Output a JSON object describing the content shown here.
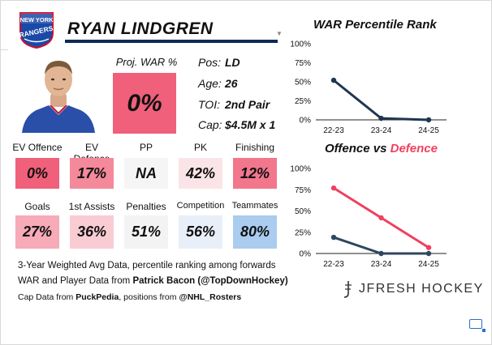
{
  "player": {
    "team_logo_lines": [
      "NEW YORK",
      "RANGERS"
    ],
    "name": "RYAN LINDGREN",
    "proj_war_label": "Proj. WAR %",
    "proj_war_value": "0%",
    "info": [
      {
        "key": "Pos:",
        "value": "LD"
      },
      {
        "key": "Age:",
        "value": "26"
      },
      {
        "key": "TOI:",
        "value": "2nd Pair"
      },
      {
        "key": "Cap:",
        "value": "$4.5M x 1"
      }
    ]
  },
  "metrics_row1": [
    {
      "label": "EV Offence",
      "value": "0%",
      "color": "#f0607a"
    },
    {
      "label": "EV Defence",
      "value": "17%",
      "color": "#f4899b"
    },
    {
      "label": "PP",
      "value": "NA",
      "color": "#f5f5f5"
    },
    {
      "label": "PK",
      "value": "42%",
      "color": "#fbe4e8"
    },
    {
      "label": "Finishing",
      "value": "12%",
      "color": "#f2768c"
    }
  ],
  "metrics_row2": [
    {
      "label": "Goals",
      "value": "27%",
      "color": "#f7aab7"
    },
    {
      "label": "1st Assists",
      "value": "36%",
      "color": "#f9ccd4"
    },
    {
      "label": "Penalties",
      "value": "51%",
      "color": "#f3f3f3"
    },
    {
      "label": "Competition",
      "value": "56%",
      "color": "#e8eff8"
    },
    {
      "label": "Teammates",
      "value": "80%",
      "color": "#a9ccef"
    }
  ],
  "notes": {
    "line1": "3-Year Weighted Avg Data, percentile ranking among forwards",
    "line2_prefix": "WAR and Player Data from ",
    "line2_bold": "Patrick Bacon (@TopDownHockey)",
    "line3_prefix": "Cap Data from ",
    "line3_bold1": "PuckPedia",
    "line3_mid": ", positions from ",
    "line3_bold2": "@NHL_Rosters"
  },
  "brand": {
    "text": "JFRESH HOCKEY"
  },
  "colors": {
    "navy": "#1f3650",
    "red": "#f0405f",
    "accent": "#0b2a55"
  },
  "chart_data": [
    {
      "type": "line",
      "title": "WAR Percentile Rank",
      "categories": [
        "22-23",
        "23-24",
        "24-25"
      ],
      "ylim": [
        0,
        100
      ],
      "yticks": [
        "0%",
        "25%",
        "50%",
        "75%",
        "100%"
      ],
      "series": [
        {
          "name": "WAR",
          "values": [
            52,
            2,
            0
          ],
          "color": "#1f3650"
        }
      ]
    },
    {
      "type": "line",
      "title_part1": "Offence vs ",
      "title_part2": "Defence",
      "categories": [
        "22-23",
        "23-24",
        "24-25"
      ],
      "ylim": [
        0,
        100
      ],
      "yticks": [
        "0%",
        "25%",
        "50%",
        "75%",
        "100%"
      ],
      "series": [
        {
          "name": "Defence",
          "values": [
            77,
            42,
            7
          ],
          "color": "#f0405f"
        },
        {
          "name": "Offence",
          "values": [
            19,
            0,
            0
          ],
          "color": "#2f4660"
        }
      ]
    }
  ]
}
